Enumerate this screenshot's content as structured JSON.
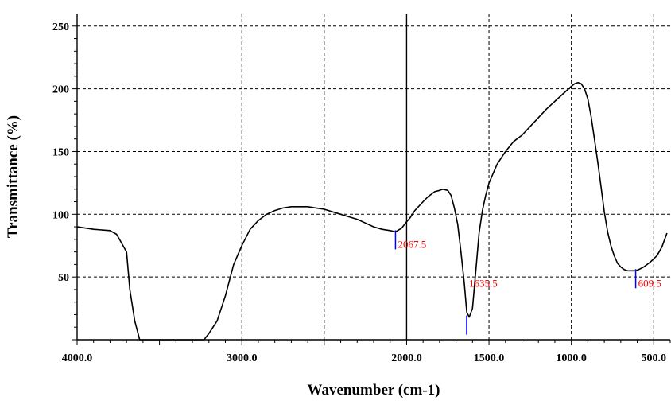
{
  "chart_data": {
    "type": "line",
    "title": "",
    "xlabel": "Wavenumber (cm-1)",
    "ylabel": "Transmittance (%)",
    "xlim": [
      4000,
      400
    ],
    "ylim": [
      0,
      260
    ],
    "x_reversed": true,
    "grid": true,
    "xticks": [
      {
        "value": 4000,
        "label": "4000.0"
      },
      {
        "value": 3000,
        "label": "3000.0"
      },
      {
        "value": 2000,
        "label": "2000.0"
      },
      {
        "value": 1500,
        "label": "1500.0"
      },
      {
        "value": 1000,
        "label": "1000.0"
      },
      {
        "value": 500,
        "label": "500.0"
      }
    ],
    "xgrid": [
      3000,
      2500,
      2000,
      1500,
      1000,
      500
    ],
    "xgrid_solid": [
      2000
    ],
    "yticks": [
      {
        "value": 50,
        "label": "50"
      },
      {
        "value": 100,
        "label": "100"
      },
      {
        "value": 150,
        "label": "150"
      },
      {
        "value": 200,
        "label": "200"
      },
      {
        "value": 250,
        "label": "250"
      }
    ],
    "series": [
      {
        "color": "#000000",
        "x": [
          4000,
          3900,
          3800,
          3760,
          3700,
          3680,
          3650,
          3620,
          3600,
          3550,
          3450,
          3300,
          3230,
          3200,
          3150,
          3100,
          3050,
          3000,
          2950,
          2900,
          2850,
          2800,
          2750,
          2700,
          2650,
          2600,
          2550,
          2500,
          2450,
          2400,
          2350,
          2300,
          2250,
          2200,
          2150,
          2100,
          2067,
          2030,
          2000,
          1980,
          1950,
          1900,
          1870,
          1850,
          1830,
          1800,
          1780,
          1750,
          1730,
          1710,
          1690,
          1670,
          1650,
          1635,
          1620,
          1600,
          1580,
          1560,
          1540,
          1520,
          1500,
          1450,
          1400,
          1350,
          1300,
          1250,
          1200,
          1150,
          1100,
          1050,
          1000,
          980,
          960,
          940,
          920,
          900,
          880,
          860,
          840,
          820,
          800,
          780,
          760,
          740,
          720,
          700,
          680,
          660,
          640,
          620,
          609,
          590,
          560,
          520,
          480,
          450,
          420
        ],
        "y": [
          90,
          88,
          87,
          84,
          70,
          40,
          15,
          0,
          0,
          0,
          0,
          0,
          0,
          5,
          15,
          35,
          60,
          75,
          88,
          95,
          100,
          103,
          105,
          106,
          106,
          106,
          105,
          104,
          102,
          100,
          98,
          96,
          93,
          90,
          88,
          87,
          86,
          89,
          94,
          97,
          103,
          110,
          114,
          116,
          118,
          119,
          120,
          119,
          115,
          105,
          92,
          70,
          45,
          22,
          18,
          25,
          55,
          85,
          103,
          115,
          125,
          140,
          150,
          158,
          163,
          170,
          177,
          184,
          190,
          196,
          202,
          204,
          205,
          204,
          200,
          192,
          178,
          160,
          142,
          122,
          102,
          86,
          75,
          67,
          61,
          58,
          56,
          55,
          55,
          55,
          55,
          56,
          58,
          62,
          67,
          74,
          85
        ]
      }
    ],
    "peaks": [
      {
        "x": 2067.5,
        "y": 86,
        "label": "2067.5"
      },
      {
        "x": 1635.5,
        "y": 18,
        "label": "1635.5"
      },
      {
        "x": 609.5,
        "y": 55,
        "label": "609.5"
      }
    ]
  }
}
